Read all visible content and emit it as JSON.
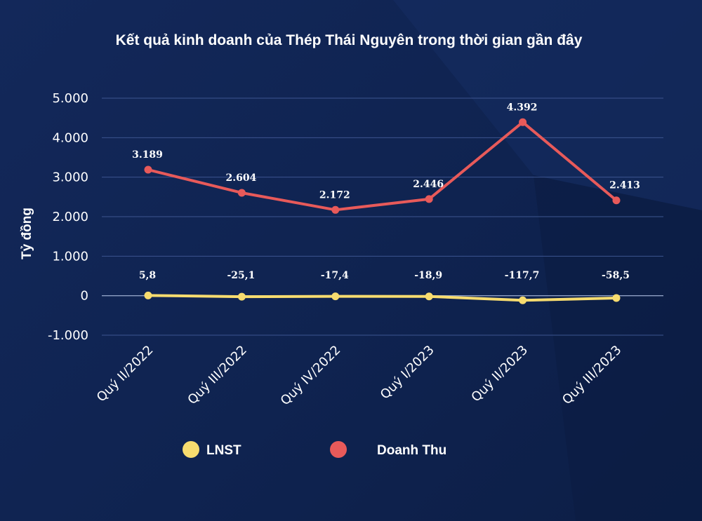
{
  "chart_data": {
    "type": "line",
    "title": "Kết quả kinh doanh của Thép Thái Nguyên trong thời gian gần đây",
    "ylabel": "Tỷ đồng",
    "categories": [
      "Quý II/2022",
      "Quý III/2022",
      "Quý IV/2022",
      "Quý I/2023",
      "Quý II/2023",
      "Quý III/2023"
    ],
    "ylim": [
      -1000,
      5000
    ],
    "yticks": [
      5000,
      4000,
      3000,
      2000,
      1000,
      0,
      -1000
    ],
    "ytick_labels": [
      "5.000",
      "4.000",
      "3.000",
      "2.000",
      "1.000",
      "0",
      "-1.000"
    ],
    "grid": true,
    "legend_position": "bottom",
    "series": [
      {
        "name": "Doanh Thu",
        "color": "#e85a5a",
        "values": [
          3189,
          2604,
          2172,
          2446,
          4392,
          2413
        ],
        "labels": [
          "3.189",
          "2.604",
          "2.172",
          "2.446",
          "4.392",
          "2.413"
        ]
      },
      {
        "name": "LNST",
        "color": "#f7dc6f",
        "values": [
          5.8,
          -25.1,
          -17.4,
          -18.9,
          -117.7,
          -58.5
        ],
        "labels": [
          "5,8",
          "-25,1",
          "-17,4",
          "-18,9",
          "-117,7",
          "-58,5"
        ]
      }
    ],
    "legend": [
      {
        "name": "LNST",
        "color": "#f7dc6f"
      },
      {
        "name": "Doanh Thu",
        "color": "#e85a5a"
      }
    ]
  }
}
